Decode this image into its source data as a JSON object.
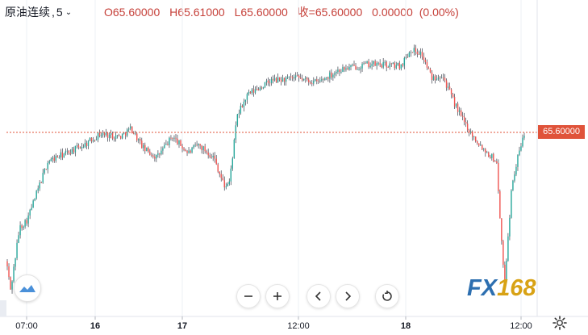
{
  "header": {
    "symbol": "原油连续",
    "timeframe": "5",
    "open_label": "O",
    "open": "65.60000",
    "high_label": "H",
    "high": "65.61000",
    "low_label": "L",
    "low": "65.60000",
    "close_label": "收=",
    "close": "65.60000",
    "change": "0.00000",
    "change_pct": "(0.00%)"
  },
  "price_label": "65.60000",
  "brand": {
    "fx": "FX",
    "n168": "168"
  },
  "controls": {
    "zoom_out": "minus-icon",
    "zoom_in": "plus-icon",
    "scroll_left": "chevron-left-icon",
    "scroll_right": "chevron-right-icon",
    "reset": "reset-icon"
  },
  "colors": {
    "up": "#26a69a",
    "down": "#ef5350",
    "price_line": "#e0533a",
    "brand_blue": "#2d6fb0",
    "brand_gold": "#d8a215"
  },
  "chart_data": {
    "type": "candlestick",
    "x_tick_labels": [
      "07:00",
      "16",
      "17",
      "12:00",
      "18",
      "12:00"
    ],
    "y_range_estimate": [
      63.6,
      66.9
    ],
    "last_price": 65.6,
    "path": [
      [
        0.0,
        64.05
      ],
      [
        0.008,
        63.7
      ],
      [
        0.025,
        64.45
      ],
      [
        0.04,
        64.55
      ],
      [
        0.08,
        65.25
      ],
      [
        0.15,
        65.45
      ],
      [
        0.18,
        65.58
      ],
      [
        0.22,
        65.55
      ],
      [
        0.24,
        65.65
      ],
      [
        0.265,
        65.4
      ],
      [
        0.29,
        65.3
      ],
      [
        0.32,
        65.55
      ],
      [
        0.35,
        65.35
      ],
      [
        0.37,
        65.45
      ],
      [
        0.4,
        65.3
      ],
      [
        0.42,
        64.95
      ],
      [
        0.43,
        65.0
      ],
      [
        0.445,
        65.8
      ],
      [
        0.465,
        66.05
      ],
      [
        0.51,
        66.22
      ],
      [
        0.56,
        66.25
      ],
      [
        0.6,
        66.2
      ],
      [
        0.64,
        66.35
      ],
      [
        0.7,
        66.42
      ],
      [
        0.76,
        66.4
      ],
      [
        0.78,
        66.6
      ],
      [
        0.8,
        66.55
      ],
      [
        0.81,
        66.4
      ],
      [
        0.82,
        66.25
      ],
      [
        0.84,
        66.3
      ],
      [
        0.86,
        66.0
      ],
      [
        0.88,
        65.75
      ],
      [
        0.9,
        65.55
      ],
      [
        0.92,
        65.4
      ],
      [
        0.945,
        65.25
      ],
      [
        0.96,
        63.75
      ],
      [
        0.975,
        65.0
      ],
      [
        0.99,
        65.4
      ],
      [
        1.0,
        65.6
      ]
    ]
  }
}
